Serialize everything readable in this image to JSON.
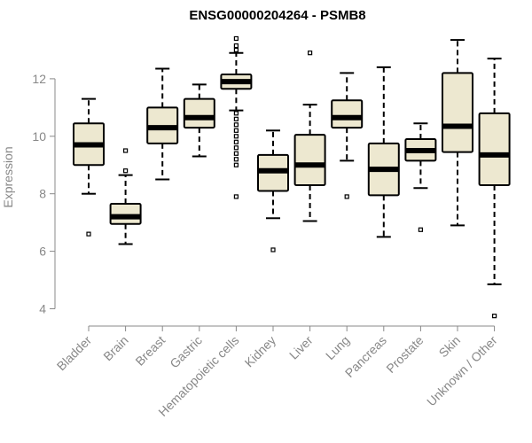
{
  "chart_data": {
    "type": "box",
    "title": "ENSG00000204264 - PSMB8",
    "xlabel": "",
    "ylabel": "Expression",
    "ylim": [
      3.5,
      13.6
    ],
    "yticks": [
      4,
      6,
      8,
      10,
      12
    ],
    "grid": false,
    "box_fill": "#ede8d0",
    "line_color": "#000000",
    "categories": [
      "Bladder",
      "Brain",
      "Breast",
      "Gastric",
      "Hematopoietic cells",
      "Kidney",
      "Liver",
      "Lung",
      "Pancreas",
      "Prostate",
      "Skin",
      "Unknown / Other"
    ],
    "boxes": [
      {
        "whisker_low": 8.0,
        "q1": 9.0,
        "median": 9.7,
        "q3": 10.45,
        "whisker_high": 11.3,
        "outliers": [
          6.6
        ]
      },
      {
        "whisker_low": 6.25,
        "q1": 6.95,
        "median": 7.2,
        "q3": 7.65,
        "whisker_high": 8.65,
        "outliers": [
          8.8,
          9.5
        ]
      },
      {
        "whisker_low": 8.5,
        "q1": 9.75,
        "median": 10.3,
        "q3": 11.0,
        "whisker_high": 12.35,
        "outliers": []
      },
      {
        "whisker_low": 9.3,
        "q1": 10.3,
        "median": 10.65,
        "q3": 11.3,
        "whisker_high": 11.8,
        "outliers": []
      },
      {
        "whisker_low": 10.9,
        "q1": 11.65,
        "median": 11.9,
        "q3": 12.15,
        "whisker_high": 12.9,
        "outliers": [
          13.4,
          13.15,
          13.0,
          10.8,
          10.6,
          10.4,
          10.2,
          10.0,
          9.8,
          9.6,
          9.4,
          9.2,
          9.0,
          7.9
        ]
      },
      {
        "whisker_low": 7.15,
        "q1": 8.1,
        "median": 8.8,
        "q3": 9.35,
        "whisker_high": 10.2,
        "outliers": [
          6.05
        ]
      },
      {
        "whisker_low": 7.05,
        "q1": 8.3,
        "median": 9.0,
        "q3": 10.05,
        "whisker_high": 11.1,
        "outliers": [
          12.9
        ]
      },
      {
        "whisker_low": 9.15,
        "q1": 10.3,
        "median": 10.65,
        "q3": 11.25,
        "whisker_high": 12.2,
        "outliers": [
          7.9
        ]
      },
      {
        "whisker_low": 6.5,
        "q1": 7.95,
        "median": 8.85,
        "q3": 9.75,
        "whisker_high": 12.4,
        "outliers": []
      },
      {
        "whisker_low": 8.2,
        "q1": 9.15,
        "median": 9.5,
        "q3": 9.9,
        "whisker_high": 10.45,
        "outliers": [
          6.75
        ]
      },
      {
        "whisker_low": 6.9,
        "q1": 9.45,
        "median": 10.35,
        "q3": 12.2,
        "whisker_high": 13.35,
        "outliers": []
      },
      {
        "whisker_low": 4.85,
        "q1": 8.3,
        "median": 9.35,
        "q3": 10.8,
        "whisker_high": 12.7,
        "outliers": [
          3.75
        ]
      }
    ]
  }
}
